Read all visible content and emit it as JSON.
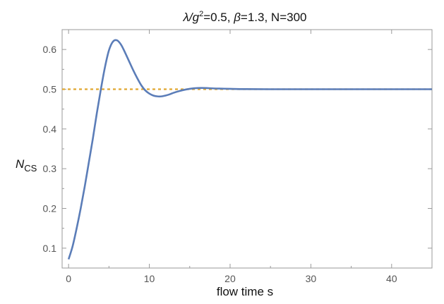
{
  "chart_data": {
    "type": "line",
    "title_parts": {
      "lambda": "λ",
      "g_sq": "/g",
      "sup": "2",
      "rest1": "=0.5, ",
      "beta": "β",
      "rest2": "=1.3, N=300"
    },
    "xlabel": "flow time s",
    "ylabel_main": "N",
    "ylabel_sub": "CS",
    "xlim": [
      -0.8,
      45
    ],
    "ylim": [
      0.05,
      0.65
    ],
    "xticks": [
      0,
      10,
      20,
      30,
      40
    ],
    "yticks": [
      0.1,
      0.2,
      0.3,
      0.4,
      0.5,
      0.6
    ],
    "grid": false,
    "colors": {
      "curve": "#5b7db8",
      "reference": "#e0a830",
      "frame": "#9a9a9a"
    },
    "series": [
      {
        "style": "solid",
        "x": [
          0,
          0.5,
          1,
          1.5,
          2,
          2.5,
          3,
          3.5,
          4,
          4.5,
          5,
          5.5,
          6,
          6.5,
          7,
          7.5,
          8,
          8.5,
          9,
          9.5,
          10,
          10.5,
          11,
          11.5,
          12,
          12.5,
          13,
          14,
          15,
          16,
          17,
          18,
          19,
          20,
          22,
          25,
          30,
          35,
          40,
          45
        ],
        "y": [
          0.072,
          0.105,
          0.15,
          0.2,
          0.255,
          0.315,
          0.375,
          0.44,
          0.5,
          0.555,
          0.598,
          0.62,
          0.623,
          0.612,
          0.592,
          0.57,
          0.548,
          0.528,
          0.51,
          0.497,
          0.489,
          0.484,
          0.482,
          0.482,
          0.484,
          0.487,
          0.491,
          0.497,
          0.501,
          0.503,
          0.503,
          0.502,
          0.5015,
          0.501,
          0.5003,
          0.5,
          0.5,
          0.5,
          0.5,
          0.5
        ]
      },
      {
        "style": "dashed",
        "x": [
          -0.8,
          45
        ],
        "y": [
          0.5,
          0.5
        ]
      }
    ]
  }
}
